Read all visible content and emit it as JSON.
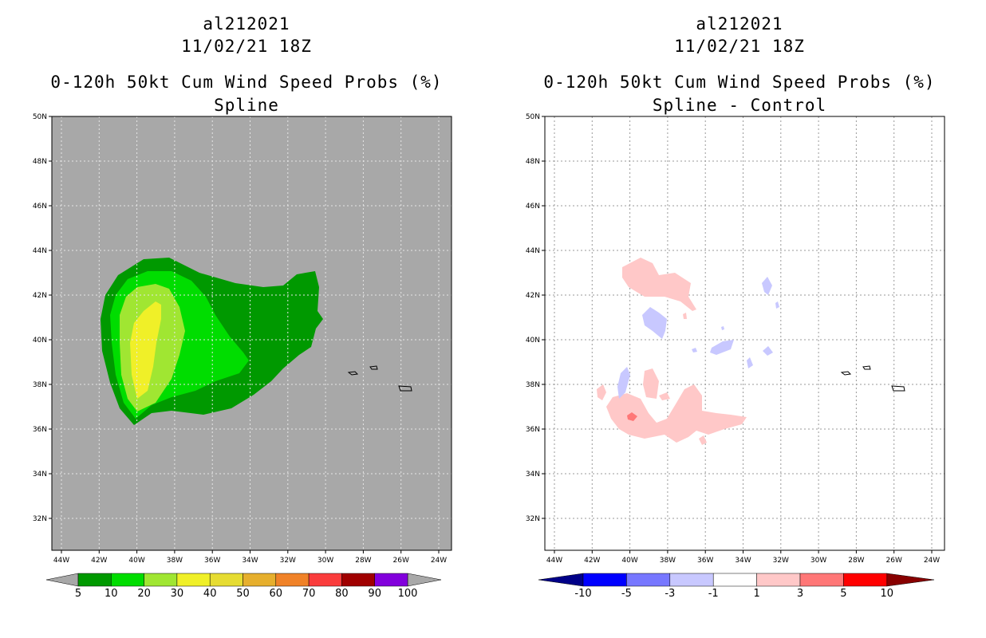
{
  "panels": [
    {
      "title_line1": "al212021",
      "title_line2": "11/02/21 18Z",
      "title_line3": "0-120h 50kt Cum Wind Speed Probs (%)",
      "title_line4": "Spline",
      "background_color": "#a8a8a8",
      "lat_labels": [
        "50N",
        "48N",
        "46N",
        "44N",
        "42N",
        "40N",
        "38N",
        "36N",
        "34N",
        "32N"
      ],
      "lon_labels": [
        "44W",
        "42W",
        "40W",
        "38W",
        "36W",
        "34W",
        "32W",
        "30W",
        "28W",
        "26W",
        "24W"
      ],
      "colorbar": {
        "labels": [
          "5",
          "10",
          "20",
          "30",
          "40",
          "50",
          "60",
          "70",
          "80",
          "90",
          "100"
        ],
        "colors": [
          "#009900",
          "#00dd00",
          "#a0e632",
          "#f0f028",
          "#e6dc32",
          "#e6af2d",
          "#f08228",
          "#fa3c3c",
          "#a00000",
          "#8200dc"
        ]
      }
    },
    {
      "title_line1": "al212021",
      "title_line2": "11/02/21 18Z",
      "title_line3": "0-120h 50kt Cum Wind Speed Probs (%)",
      "title_line4": "Spline - Control",
      "background_color": "#ffffff",
      "lat_labels": [
        "50N",
        "48N",
        "46N",
        "44N",
        "42N",
        "40N",
        "38N",
        "36N",
        "34N",
        "32N"
      ],
      "lon_labels": [
        "44W",
        "42W",
        "40W",
        "38W",
        "36W",
        "34W",
        "32W",
        "30W",
        "28W",
        "26W",
        "24W"
      ],
      "colorbar": {
        "labels": [
          "-10",
          "-5",
          "-3",
          "-1",
          "1",
          "3",
          "5",
          "10"
        ],
        "colors": [
          "#0000ff",
          "#7777ff",
          "#c8c8ff",
          "#ffffff",
          "#ffc8c8",
          "#ff7777",
          "#ff0000"
        ],
        "end_low": "#000088",
        "end_high": "#880000"
      }
    }
  ]
}
